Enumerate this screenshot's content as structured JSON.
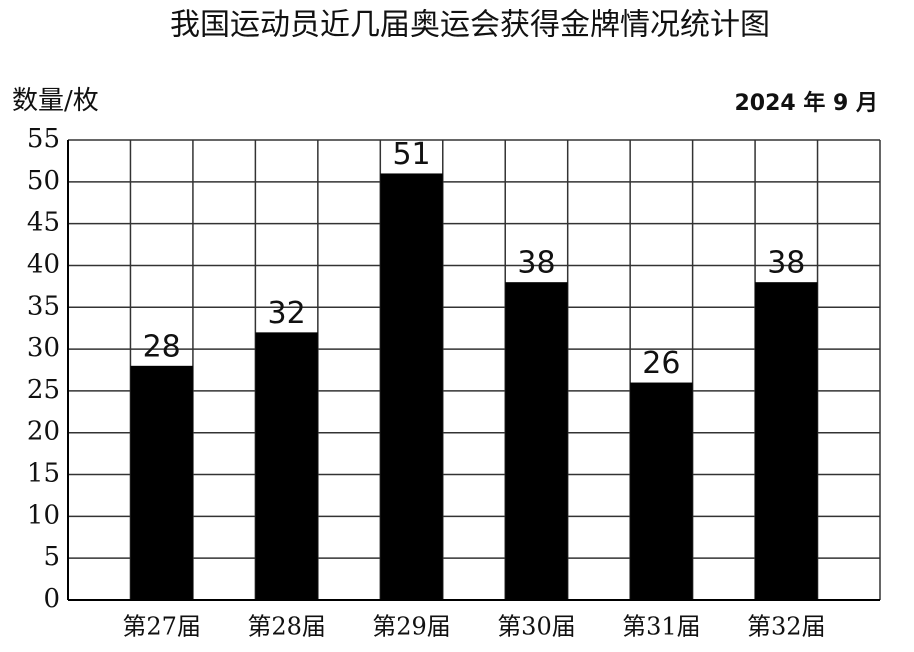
{
  "chart_data": {
    "type": "bar",
    "title": "我国运动员近几届奥运会获得金牌情况统计图",
    "y_label": "数量/枚",
    "date": "2024 年 9 月",
    "categories": [
      "第27届",
      "第28届",
      "第29届",
      "第30届",
      "第31届",
      "第32届"
    ],
    "values": [
      28,
      32,
      51,
      38,
      26,
      38
    ],
    "color": "#000000",
    "ylim": [
      0,
      55
    ],
    "yticks": [
      0,
      5,
      10,
      15,
      20,
      25,
      30,
      35,
      40,
      45,
      50,
      55
    ],
    "grid": true
  }
}
